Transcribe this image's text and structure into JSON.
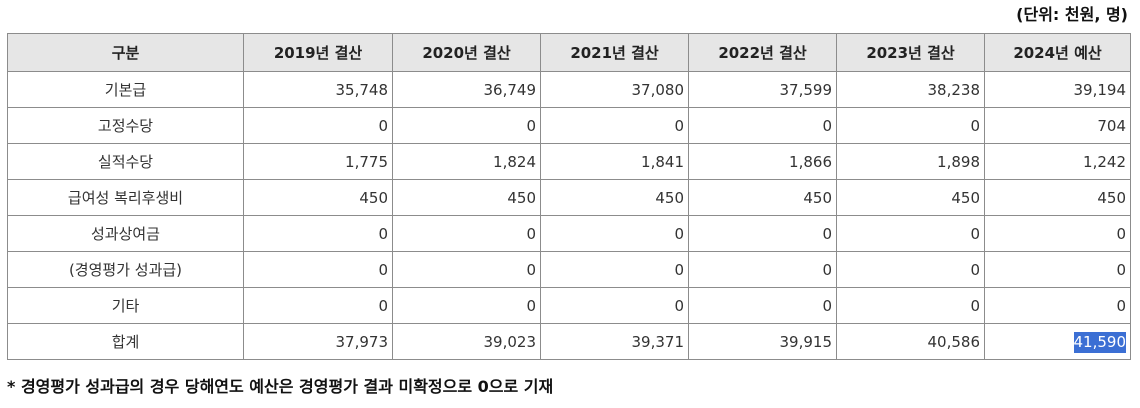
{
  "unit_note": "(단위: 천원, 명)",
  "table": {
    "headers": [
      "구분",
      "2019년 결산",
      "2020년 결산",
      "2021년 결산",
      "2022년 결산",
      "2023년 결산",
      "2024년 예산"
    ],
    "rows": [
      {
        "label": "기본급",
        "values": [
          "35,748",
          "36,749",
          "37,080",
          "37,599",
          "38,238",
          "39,194"
        ]
      },
      {
        "label": "고정수당",
        "values": [
          "0",
          "0",
          "0",
          "0",
          "0",
          "704"
        ]
      },
      {
        "label": "실적수당",
        "values": [
          "1,775",
          "1,824",
          "1,841",
          "1,866",
          "1,898",
          "1,242"
        ]
      },
      {
        "label": "급여성 복리후생비",
        "values": [
          "450",
          "450",
          "450",
          "450",
          "450",
          "450"
        ]
      },
      {
        "label": "성과상여금",
        "values": [
          "0",
          "0",
          "0",
          "0",
          "0",
          "0"
        ]
      },
      {
        "label": "(경영평가 성과급)",
        "values": [
          "0",
          "0",
          "0",
          "0",
          "0",
          "0"
        ]
      },
      {
        "label": "기타",
        "values": [
          "0",
          "0",
          "0",
          "0",
          "0",
          "0"
        ]
      },
      {
        "label": "합계",
        "values": [
          "37,973",
          "39,023",
          "39,371",
          "39,915",
          "40,586",
          "41,590"
        ]
      }
    ]
  },
  "footnote": "* 경영평가 성과급의 경우 당해연도 예산은 경영평가 결과 미확정으로 0으로 기재",
  "colors": {
    "header_bg": "#e6e6e6",
    "border": "#8c8c8c",
    "selection": "#3b6fd4"
  }
}
